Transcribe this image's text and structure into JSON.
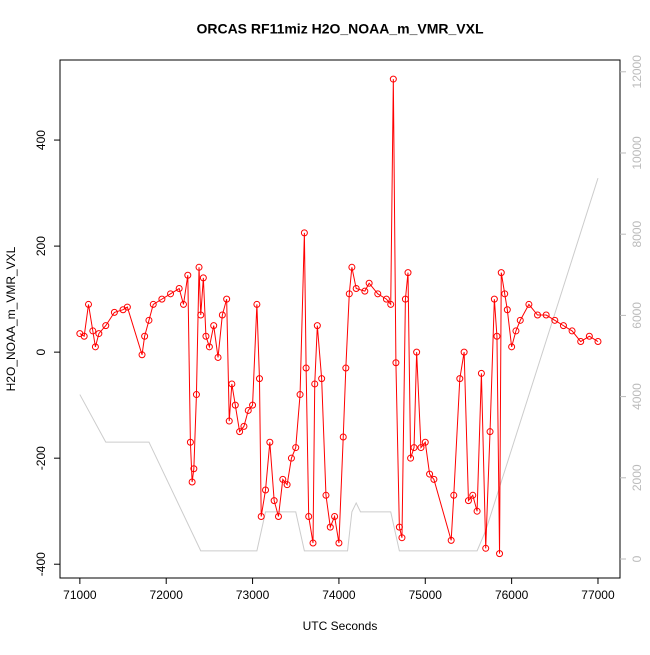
{
  "chart_data": {
    "type": "line",
    "title": "ORCAS RF11miz H2O_NOAA_m_VMR_VXL",
    "x_label": "UTC Seconds",
    "y_label": "H2O_NOAA_m_VMR_VXL",
    "xlim": [
      70770,
      77255
    ],
    "xticks": [
      71000,
      72000,
      73000,
      74000,
      75000,
      76000,
      77000
    ],
    "ylim": [
      -426,
      551
    ],
    "yticks": [
      -400,
      -200,
      0,
      200,
      400
    ],
    "y2lim": [
      -468,
      12290
    ],
    "y2ticks": [
      0,
      2000,
      4000,
      6000,
      8000,
      10000,
      12000
    ],
    "series": [
      {
        "color": "#ff0000",
        "marker": "circle",
        "x": [
          71000,
          71050,
          71100,
          71150,
          71180,
          71220,
          71300,
          71400,
          71500,
          71550,
          71720,
          71750,
          71800,
          71850,
          71950,
          72050,
          72150,
          72200,
          72250,
          72280,
          72300,
          72320,
          72350,
          72380,
          72400,
          72430,
          72460,
          72500,
          72550,
          72600,
          72650,
          72700,
          72730,
          72760,
          72800,
          72850,
          72900,
          72950,
          73000,
          73050,
          73080,
          73100,
          73150,
          73200,
          73250,
          73300,
          73350,
          73400,
          73450,
          73500,
          73550,
          73600,
          73620,
          73650,
          73700,
          73720,
          73750,
          73800,
          73850,
          73900,
          73950,
          74000,
          74050,
          74080,
          74120,
          74150,
          74200,
          74300,
          74350,
          74450,
          74550,
          74600,
          74630,
          74660,
          74700,
          74730,
          74770,
          74800,
          74830,
          74870,
          74900,
          74950,
          75000,
          75050,
          75100,
          75300,
          75330,
          75400,
          75450,
          75500,
          75550,
          75600,
          75650,
          75700,
          75750,
          75800,
          75830,
          75860,
          75880,
          75920,
          75950,
          76000,
          76050,
          76100,
          76200,
          76300,
          76400,
          76500,
          76600,
          76700,
          76800,
          76900,
          77000
        ],
        "values": [
          35,
          30,
          90,
          40,
          10,
          35,
          50,
          75,
          80,
          85,
          -5,
          30,
          60,
          90,
          100,
          110,
          120,
          90,
          145,
          -170,
          -245,
          -220,
          -80,
          160,
          70,
          140,
          30,
          10,
          50,
          -10,
          70,
          100,
          -130,
          -60,
          -100,
          -150,
          -140,
          -110,
          -100,
          90,
          -50,
          -310,
          -260,
          -170,
          -280,
          -310,
          -240,
          -250,
          -200,
          -180,
          -80,
          225,
          -30,
          -310,
          -360,
          -60,
          50,
          -50,
          -270,
          -330,
          -310,
          -360,
          -160,
          -30,
          110,
          160,
          120,
          115,
          130,
          110,
          100,
          90,
          515,
          -20,
          -330,
          -350,
          100,
          150,
          -200,
          -180,
          0,
          -180,
          -170,
          -230,
          -240,
          -355,
          -270,
          -50,
          0,
          -280,
          -270,
          -300,
          -40,
          -370,
          -150,
          100,
          30,
          -380,
          150,
          110,
          80,
          10,
          40,
          60,
          90,
          70,
          70,
          60,
          50,
          40,
          20,
          30,
          20
        ]
      },
      {
        "color": "#cccccc",
        "axis": "y2",
        "x": [
          71000,
          71300,
          71800,
          72400,
          73050,
          73150,
          73500,
          73600,
          74100,
          74150,
          74200,
          74250,
          74600,
          74700,
          75600,
          75700,
          77000
        ],
        "values": [
          4050,
          2880,
          2880,
          200,
          200,
          1160,
          1160,
          200,
          200,
          1160,
          1380,
          1160,
          1160,
          200,
          200,
          700,
          9380
        ]
      }
    ]
  }
}
